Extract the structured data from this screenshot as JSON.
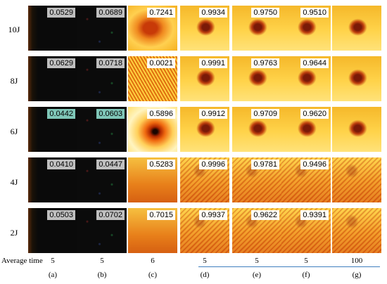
{
  "rows": [
    {
      "label": "10J",
      "scores": [
        "0.0529",
        "0.0689",
        "0.7241",
        "0.9934",
        "0.9750",
        "0.9510",
        ""
      ]
    },
    {
      "label": "8J",
      "scores": [
        "0.0629",
        "0.0718",
        "0.0021",
        "0.9991",
        "0.9763",
        "0.9644",
        ""
      ]
    },
    {
      "label": "6J",
      "scores": [
        "0.0442",
        "0.0603",
        "0.5896",
        "0.9912",
        "0.9709",
        "0.9620",
        ""
      ]
    },
    {
      "label": "4J",
      "scores": [
        "0.0410",
        "0.0447",
        "0.5283",
        "0.9996",
        "0.9781",
        "0.9496",
        ""
      ]
    },
    {
      "label": "2J",
      "scores": [
        "0.0503",
        "0.0702",
        "0.7015",
        "0.9937",
        "0.9622",
        "0.9391",
        ""
      ]
    }
  ],
  "average_time_label": "Average time",
  "average_times": [
    "5",
    "5",
    "6",
    "5",
    "5",
    "5",
    "100"
  ],
  "columns": [
    "(a)",
    "(b)",
    "(c)",
    "(d)",
    "(e)",
    "(f)",
    "(g)"
  ],
  "colors": {
    "hot_bg": "#f2b21c",
    "hot_light": "#ffe36a",
    "defect": "#8a1e0a",
    "dark": "#0a0a0a",
    "rule": "#3f7fbf"
  }
}
